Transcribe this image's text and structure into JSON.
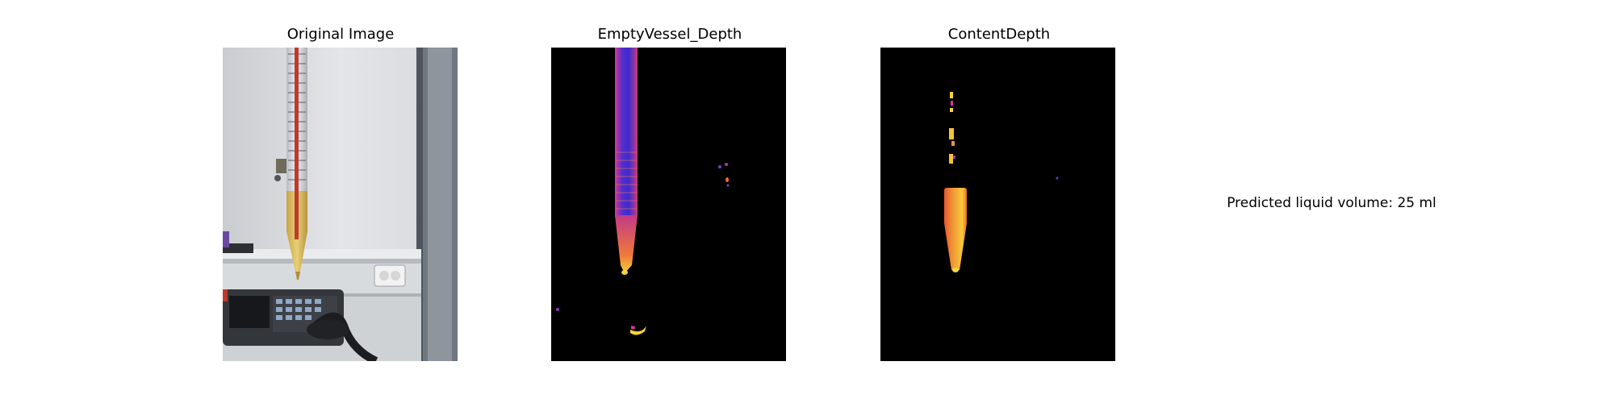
{
  "panels": [
    {
      "title": "Original Image"
    },
    {
      "title": "EmptyVessel_Depth"
    },
    {
      "title": "ContentDepth"
    }
  ],
  "prediction": {
    "label": "Predicted liquid volume:",
    "value": "25",
    "unit": "ml",
    "text": "Predicted liquid volume: 25 ml"
  },
  "colors": {
    "background": "#ffffff",
    "depth_background": "#000000",
    "depth_low": "#3b2ad0",
    "depth_mid": "#d8379a",
    "depth_high": "#f5d33a"
  }
}
